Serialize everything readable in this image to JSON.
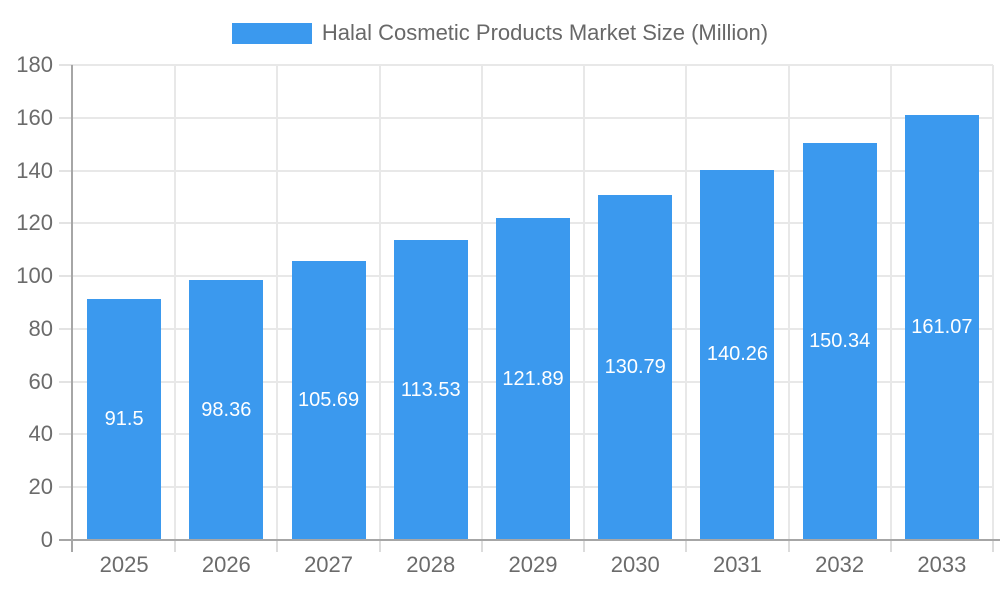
{
  "chart_data": {
    "type": "bar",
    "title": "Halal Cosmetic Products Market Size (Million)",
    "legend": [
      "Halal Cosmetic Products Market Size (Million)"
    ],
    "legend_position": "top-center",
    "categories": [
      "2025",
      "2026",
      "2027",
      "2028",
      "2029",
      "2030",
      "2031",
      "2032",
      "2033"
    ],
    "series": [
      {
        "name": "Halal Cosmetic Products Market Size (Million)",
        "values": [
          91.5,
          98.36,
          105.69,
          113.53,
          121.89,
          130.79,
          140.26,
          150.34,
          161.07
        ],
        "data_labels": [
          "91.5",
          "98.36",
          "105.69",
          "113.53",
          "121.89",
          "130.79",
          "140.26",
          "150.34",
          "161.07"
        ]
      }
    ],
    "xlabel": "",
    "ylabel": "",
    "ylim": [
      0,
      180
    ],
    "ytick_labels": [
      "0",
      "20",
      "40",
      "60",
      "80",
      "100",
      "120",
      "140",
      "160",
      "180"
    ],
    "grid": true,
    "data_label_position": "inside-center",
    "colors": {
      "bar": "#3b99ee",
      "bar_value_text": "#ffffff",
      "axis_text": "#6b6b6b",
      "legend_text": "#686868",
      "grid_line": "#e8e8e8",
      "axis_line": "#a6a6a6",
      "background": "#ffffff"
    }
  }
}
